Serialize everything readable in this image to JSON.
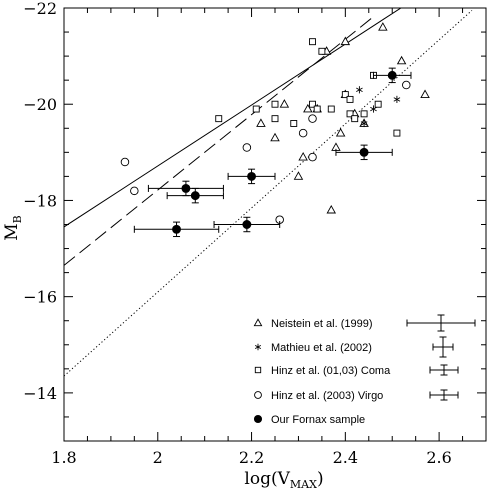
{
  "chart_data": {
    "type": "scatter",
    "xlabel": "log(V",
    "xlabel_sub": "MAX",
    "xlabel_close": ")",
    "ylabel": "M",
    "ylabel_sub": "B",
    "xlim": [
      1.8,
      2.7
    ],
    "ylim": [
      -13,
      -22
    ],
    "y_inverted": true,
    "grid": false,
    "legend_position": "lower-right",
    "x_ticks": [
      {
        "value": 1.8,
        "label": "1.8"
      },
      {
        "value": 2.0,
        "label": "2"
      },
      {
        "value": 2.2,
        "label": "2.2"
      },
      {
        "value": 2.4,
        "label": "2.4"
      },
      {
        "value": 2.6,
        "label": "2.6"
      }
    ],
    "y_ticks": [
      {
        "value": -14,
        "label": "−14"
      },
      {
        "value": -16,
        "label": "−16"
      },
      {
        "value": -18,
        "label": "−18"
      },
      {
        "value": -20,
        "label": "−20"
      },
      {
        "value": -22,
        "label": "−22"
      }
    ],
    "lines": [
      {
        "style": "solid",
        "x": [
          1.8,
          2.55
        ],
        "y": [
          -17.45,
          -22.2
        ]
      },
      {
        "style": "dashed",
        "x": [
          1.8,
          2.46
        ],
        "y": [
          -16.65,
          -21.82
        ]
      },
      {
        "style": "dotted",
        "x": [
          1.8,
          2.67
        ],
        "y": [
          -14.35,
          -21.95
        ]
      }
    ],
    "series": [
      {
        "name": "Neistein et al. (1999)",
        "marker": "triangle",
        "points": [
          [
            2.22,
            -19.6
          ],
          [
            2.25,
            -19.3
          ],
          [
            2.27,
            -20.0
          ],
          [
            2.3,
            -18.5
          ],
          [
            2.31,
            -18.9
          ],
          [
            2.32,
            -19.9
          ],
          [
            2.34,
            -19.9
          ],
          [
            2.36,
            -21.1
          ],
          [
            2.37,
            -17.8
          ],
          [
            2.38,
            -19.1
          ],
          [
            2.39,
            -19.4
          ],
          [
            2.4,
            -21.3
          ],
          [
            2.4,
            -20.2
          ],
          [
            2.42,
            -19.8
          ],
          [
            2.44,
            -19.6
          ],
          [
            2.48,
            -21.6
          ],
          [
            2.52,
            -20.9
          ],
          [
            2.57,
            -20.2
          ]
        ]
      },
      {
        "name": "Mathieu et al. (2002)",
        "marker": "asterisk",
        "points": [
          [
            2.43,
            -20.3
          ],
          [
            2.44,
            -19.6
          ],
          [
            2.46,
            -19.9
          ],
          [
            2.51,
            -20.1
          ]
        ]
      },
      {
        "name": "Hinz et al. (01,03) Coma",
        "marker": "square",
        "points": [
          [
            2.13,
            -19.7
          ],
          [
            2.21,
            -19.9
          ],
          [
            2.25,
            -20.0
          ],
          [
            2.25,
            -19.7
          ],
          [
            2.29,
            -19.6
          ],
          [
            2.33,
            -20.0
          ],
          [
            2.34,
            -19.9
          ],
          [
            2.33,
            -21.3
          ],
          [
            2.35,
            -21.1
          ],
          [
            2.37,
            -19.9
          ],
          [
            2.4,
            -20.2
          ],
          [
            2.41,
            -19.8
          ],
          [
            2.41,
            -20.1
          ],
          [
            2.42,
            -19.7
          ],
          [
            2.44,
            -19.8
          ],
          [
            2.46,
            -20.6
          ],
          [
            2.47,
            -20.0
          ],
          [
            2.51,
            -19.4
          ]
        ]
      },
      {
        "name": "Hinz et al. (2003) Virgo",
        "marker": "circle",
        "points": [
          [
            1.93,
            -18.8
          ],
          [
            1.95,
            -18.2
          ],
          [
            2.19,
            -19.1
          ],
          [
            2.26,
            -17.6
          ],
          [
            2.31,
            -19.4
          ],
          [
            2.33,
            -18.9
          ],
          [
            2.33,
            -19.7
          ],
          [
            2.53,
            -20.4
          ]
        ]
      },
      {
        "name": "Our Fornax sample",
        "marker": "filled-circle",
        "points": [
          {
            "x": 2.04,
            "y": -17.4,
            "xerr": 0.09,
            "yerr": 0.15
          },
          {
            "x": 2.06,
            "y": -18.25,
            "xerr": 0.08,
            "yerr": 0.15
          },
          {
            "x": 2.08,
            "y": -18.1,
            "xerr": 0.06,
            "yerr": 0.15
          },
          {
            "x": 2.19,
            "y": -17.5,
            "xerr": 0.07,
            "yerr": 0.15
          },
          {
            "x": 2.2,
            "y": -18.5,
            "xerr": 0.05,
            "yerr": 0.15
          },
          {
            "x": 2.44,
            "y": -19.0,
            "xerr": 0.06,
            "yerr": 0.15
          },
          {
            "x": 2.5,
            "y": -20.6,
            "xerr": 0.04,
            "yerr": 0.15
          }
        ]
      }
    ]
  }
}
